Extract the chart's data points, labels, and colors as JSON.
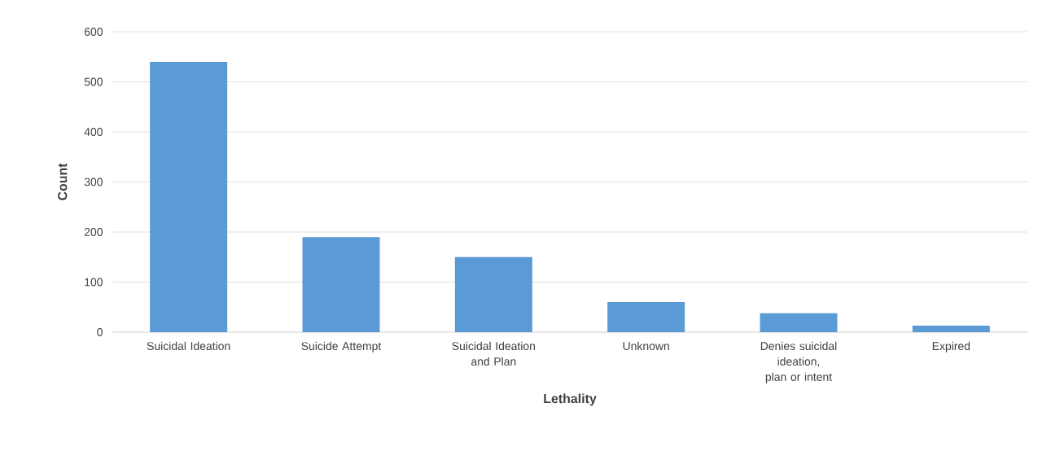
{
  "chart_data": {
    "type": "bar",
    "xlabel": "Lethality",
    "ylabel": "Count",
    "categories": [
      "Suicidal Ideation",
      "Suicide Attempt",
      "Suicidal Ideation and Plan",
      "Unknown",
      "Denies suicidal ideation, plan or intent",
      "Expired"
    ],
    "values": [
      540,
      190,
      150,
      60,
      38,
      13
    ],
    "color": "#5b9bd5",
    "ylim": [
      0,
      600
    ],
    "yticks": [
      0,
      100,
      200,
      300,
      400,
      500,
      600
    ],
    "grid": "y"
  }
}
